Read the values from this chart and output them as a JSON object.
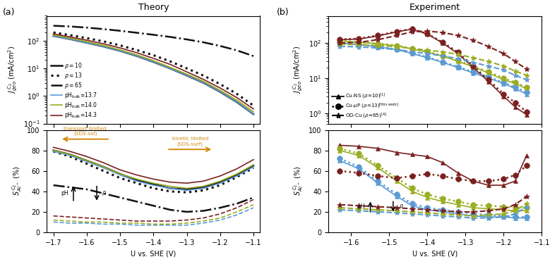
{
  "theory_upper": {
    "x": [
      -1.7,
      -1.65,
      -1.6,
      -1.55,
      -1.5,
      -1.45,
      -1.4,
      -1.35,
      -1.3,
      -1.25,
      -1.2,
      -1.15,
      -1.1
    ],
    "rho10_solid": [
      150,
      115,
      85,
      62,
      43,
      28,
      17,
      10,
      5.5,
      3.0,
      1.4,
      0.6,
      0.22
    ],
    "rho13_dotted": [
      200,
      160,
      125,
      95,
      68,
      46,
      30,
      18,
      10,
      5.5,
      2.7,
      1.2,
      0.45
    ],
    "rho65_dashdot": [
      350,
      330,
      300,
      265,
      230,
      195,
      165,
      138,
      112,
      88,
      65,
      45,
      28
    ],
    "ph137_blue": [
      150,
      115,
      85,
      62,
      43,
      28,
      17,
      10,
      5.5,
      3.0,
      1.4,
      0.6,
      0.22
    ],
    "ph140_olive": [
      162,
      125,
      93,
      68,
      47,
      31,
      19,
      11,
      6.2,
      3.4,
      1.6,
      0.72,
      0.27
    ],
    "ph143_darkred": [
      178,
      138,
      105,
      78,
      55,
      37,
      23,
      14,
      7.5,
      4.0,
      1.95,
      0.88,
      0.34
    ]
  },
  "theory_lower": {
    "x": [
      -1.7,
      -1.65,
      -1.6,
      -1.55,
      -1.5,
      -1.45,
      -1.4,
      -1.35,
      -1.3,
      -1.25,
      -1.2,
      -1.15,
      -1.1
    ],
    "rho10_solid": [
      80,
      76,
      70,
      64,
      57,
      51,
      47,
      43,
      42,
      44,
      49,
      56,
      65
    ],
    "rho13_dotted": [
      79,
      74,
      67,
      60,
      53,
      48,
      43,
      40,
      39,
      41,
      46,
      54,
      63
    ],
    "ph137_blue_solid": [
      79,
      75,
      69,
      63,
      56,
      50,
      46,
      43,
      41,
      43,
      48,
      55,
      64
    ],
    "ph140_olive_solid": [
      80,
      76,
      70,
      64,
      57,
      52,
      48,
      45,
      43,
      45,
      50,
      57,
      66
    ],
    "ph143_darkred_solid": [
      83,
      79,
      74,
      68,
      61,
      56,
      52,
      49,
      48,
      50,
      55,
      62,
      71
    ],
    "rho65_dashdot": [
      46,
      44,
      42,
      38,
      34,
      30,
      26,
      22,
      20,
      21,
      24,
      28,
      34
    ],
    "ph137_blue_dashed": [
      10,
      9,
      9,
      8,
      8,
      7,
      7,
      7,
      7,
      9,
      12,
      17,
      24
    ],
    "ph140_olive_dashed": [
      12,
      11,
      10,
      10,
      9,
      9,
      8,
      8,
      9,
      11,
      14,
      20,
      27
    ],
    "ph143_darkred_dashed": [
      16,
      15,
      14,
      13,
      12,
      11,
      11,
      11,
      12,
      14,
      18,
      24,
      32
    ]
  },
  "colors": {
    "blue": "#5b9bd5",
    "olive": "#9aad23",
    "darkred": "#7b2020",
    "black": "#111111",
    "orange": "#d4860a"
  },
  "title_left": "Theory",
  "title_right": "Experiment",
  "exp_upper": {
    "x_common": [
      -1.63,
      -1.58,
      -1.53,
      -1.48,
      -1.44,
      -1.4,
      -1.36,
      -1.32,
      -1.28,
      -1.24,
      -1.2,
      -1.17,
      -1.14
    ],
    "ns_blue": [
      100,
      90,
      78,
      65,
      50,
      38,
      28,
      20,
      14,
      10,
      7,
      5,
      3.5
    ],
    "ns_olive": [
      115,
      105,
      95,
      83,
      68,
      55,
      42,
      30,
      21,
      14,
      9,
      7,
      5
    ],
    "ns_red": [
      125,
      130,
      160,
      210,
      250,
      180,
      100,
      50,
      20,
      8,
      3,
      1.5,
      0.9
    ],
    "up_blue": [
      100,
      91,
      79,
      66,
      52,
      40,
      29,
      21,
      15,
      11,
      7.5,
      5.5,
      4
    ],
    "up_olive": [
      118,
      108,
      98,
      85,
      70,
      57,
      44,
      32,
      22,
      15,
      10,
      7.5,
      5.5
    ],
    "up_red": [
      128,
      135,
      165,
      215,
      255,
      185,
      105,
      55,
      22,
      9,
      3.5,
      2,
      1.1
    ],
    "od_blue": [
      80,
      78,
      72,
      65,
      57,
      50,
      43,
      36,
      28,
      22,
      17,
      12,
      9
    ],
    "od_olive": [
      92,
      90,
      85,
      78,
      70,
      63,
      56,
      48,
      38,
      30,
      22,
      16,
      12
    ],
    "od_red": [
      100,
      105,
      125,
      165,
      210,
      220,
      200,
      165,
      120,
      80,
      50,
      30,
      18
    ]
  },
  "exp_lower": {
    "x_common": [
      -1.63,
      -1.58,
      -1.53,
      -1.48,
      -1.44,
      -1.4,
      -1.36,
      -1.32,
      -1.28,
      -1.24,
      -1.2,
      -1.17,
      -1.14
    ],
    "ns_blue_s": [
      70,
      62,
      48,
      35,
      26,
      22,
      20,
      18,
      16,
      15,
      15,
      14,
      14
    ],
    "ns_olive_s": [
      80,
      75,
      63,
      50,
      40,
      34,
      30,
      27,
      24,
      23,
      22,
      21,
      21
    ],
    "ns_red_s": [
      85,
      84,
      82,
      78,
      76,
      74,
      68,
      58,
      50,
      46,
      46,
      50,
      75
    ],
    "up_blue_s": [
      72,
      64,
      50,
      37,
      28,
      24,
      22,
      20,
      18,
      17,
      16,
      15,
      15
    ],
    "up_olive_s": [
      82,
      77,
      65,
      53,
      43,
      37,
      33,
      30,
      27,
      26,
      25,
      24,
      24
    ],
    "up_red_s": [
      60,
      58,
      55,
      53,
      55,
      57,
      55,
      52,
      50,
      50,
      52,
      56,
      65
    ],
    "od_blue_d": [
      22,
      21,
      20,
      19,
      18,
      17,
      16,
      15,
      14,
      14,
      15,
      18,
      25
    ],
    "od_olive_d": [
      24,
      23,
      22,
      21,
      20,
      19,
      18,
      17,
      16,
      17,
      18,
      21,
      28
    ],
    "od_red_d": [
      27,
      26,
      25,
      24,
      23,
      22,
      21,
      20,
      20,
      21,
      23,
      27,
      35
    ]
  }
}
